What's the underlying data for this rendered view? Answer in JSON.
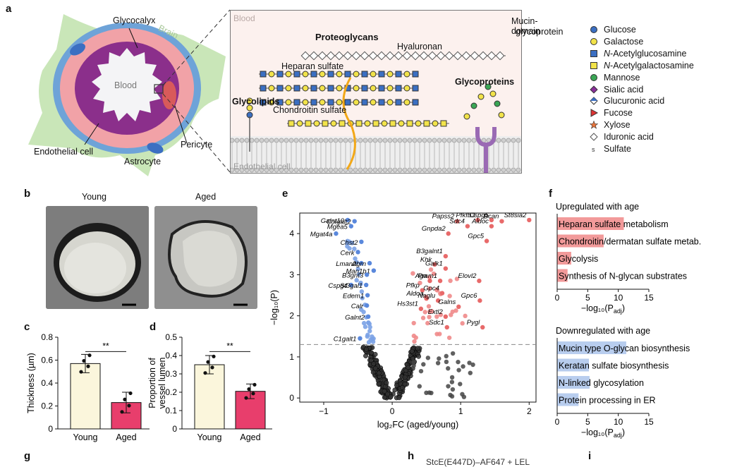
{
  "panels": {
    "a": "a",
    "b": "b",
    "c": "c",
    "d": "d",
    "e": "e",
    "f": "f",
    "g": "g",
    "h": "h",
    "i": "i"
  },
  "schematic": {
    "vessel_labels": {
      "glycocalyx": "Glycocalyx",
      "brain": "Brain",
      "blood": "Blood",
      "endothelial_cell": "Endothelial cell",
      "pericyte": "Pericyte",
      "astrocyte": "Astrocyte"
    },
    "inset_labels": {
      "blood": "Blood",
      "proteoglycans": "Proteoglycans",
      "hyaluronan": "Hyaluronan",
      "heparan_sulfate": "Heparan sulfate",
      "glycolipids": "Glycolipids",
      "chondroitin_sulfate": "Chondroitin sulfate",
      "glycoproteins": "Glycoproteins",
      "mucin_domain": "Mucin-domain",
      "mucin_glyco": "glycoprotein",
      "endothelial_cell": "Endothelial cell"
    },
    "legend": [
      {
        "label": "Glucose",
        "shape": "circle",
        "color": "#3b6fc2"
      },
      {
        "label": "Galactose",
        "shape": "circle",
        "color": "#f2e34a"
      },
      {
        "label": "N-Acetylglucosamine",
        "shape": "square",
        "color": "#3b6fc2"
      },
      {
        "label": "N-Acetylgalactosamine",
        "shape": "square",
        "color": "#f2e34a"
      },
      {
        "label": "Mannose",
        "shape": "circle",
        "color": "#3aa655"
      },
      {
        "label": "Sialic acid",
        "shape": "diamond",
        "color": "#8a2f9a"
      },
      {
        "label": "Glucuronic acid",
        "shape": "diamond-half",
        "color": "#3b6fc2"
      },
      {
        "label": "Fucose",
        "shape": "triangle",
        "color": "#d33"
      },
      {
        "label": "Xylose",
        "shape": "star",
        "color": "#e8743b"
      },
      {
        "label": "Iduronic acid",
        "shape": "diamond-outline",
        "color": "#999"
      },
      {
        "label": "Sulfate",
        "shape": "s",
        "color": "#333"
      }
    ]
  },
  "micrographs": {
    "young": "Young",
    "aged": "Aged"
  },
  "panel_c": {
    "ylabel": "Thickness (µm)",
    "ticks": [
      "0",
      "0.2",
      "0.4",
      "0.6",
      "0.8"
    ],
    "ylim": [
      0,
      0.8
    ],
    "categories": [
      "Young",
      "Aged"
    ],
    "values": [
      0.57,
      0.23
    ],
    "errors": [
      0.08,
      0.09
    ],
    "colors": [
      "#fbf6dc",
      "#e83e6c"
    ],
    "sig": "**"
  },
  "panel_d": {
    "ylabel1": "Proportion of",
    "ylabel2": "vessel lumen",
    "ticks": [
      "0",
      "0.1",
      "0.2",
      "0.3",
      "0.4",
      "0.5"
    ],
    "ylim": [
      0,
      0.5
    ],
    "categories": [
      "Young",
      "Aged"
    ],
    "values": [
      0.35,
      0.205
    ],
    "errors": [
      0.05,
      0.04
    ],
    "colors": [
      "#fbf6dc",
      "#e83e6c"
    ],
    "sig": "**"
  },
  "chart_data": {
    "type": "scatter",
    "xlabel": "log₂FC (aged/young)",
    "ylabel": "−log₁₀(P)",
    "xlim": [
      -1.35,
      2.1
    ],
    "ylim": [
      -0.1,
      4.5
    ],
    "xticks": [
      "−1",
      "0",
      "1",
      "2"
    ],
    "yticks": [
      "0",
      "1",
      "2",
      "3",
      "4"
    ],
    "threshold": 1.3,
    "down_genes": [
      {
        "name": "Galnt10",
        "x": -0.65,
        "y": 4.33
      },
      {
        "name": "Colgalt2",
        "x": -0.55,
        "y": 4.3
      },
      {
        "name": "Mgea5",
        "x": -0.6,
        "y": 4.18
      },
      {
        "name": "Mgat4a",
        "x": -0.82,
        "y": 4.0
      },
      {
        "name": "Chst2",
        "x": -0.45,
        "y": 3.8
      },
      {
        "name": "Cerk",
        "x": -0.5,
        "y": 3.55
      },
      {
        "name": "Lman2l",
        "x": -0.45,
        "y": 3.28
      },
      {
        "name": "Agrn",
        "x": -0.33,
        "y": 3.28
      },
      {
        "name": "Man1b1",
        "x": -0.27,
        "y": 3.1
      },
      {
        "name": "B3gnt3",
        "x": -0.37,
        "y": 3.0
      },
      {
        "name": "Cspg4",
        "x": -0.6,
        "y": 2.75
      },
      {
        "name": "St3gal1",
        "x": -0.38,
        "y": 2.75
      },
      {
        "name": "Edem1",
        "x": -0.36,
        "y": 2.5
      },
      {
        "name": "Calr",
        "x": -0.37,
        "y": 2.25
      },
      {
        "name": "Galnt2",
        "x": -0.35,
        "y": 1.98
      },
      {
        "name": "C1galt1",
        "x": -0.47,
        "y": 1.45
      }
    ],
    "up_genes": [
      {
        "name": "Papss2",
        "x": 0.95,
        "y": 4.3
      },
      {
        "name": "Pfkfb3",
        "x": 1.25,
        "y": 4.33
      },
      {
        "name": "Cspg5",
        "x": 1.45,
        "y": 4.33
      },
      {
        "name": "St8sia2",
        "x": 2.0,
        "y": 4.33
      },
      {
        "name": "Sdc4",
        "x": 1.1,
        "y": 4.18
      },
      {
        "name": "Aldoc",
        "x": 1.45,
        "y": 4.18
      },
      {
        "name": "Bcan",
        "x": 1.6,
        "y": 4.3
      },
      {
        "name": "Gnpda2",
        "x": 0.82,
        "y": 4.0
      },
      {
        "name": "Gpc5",
        "x": 1.38,
        "y": 3.82
      },
      {
        "name": "B3galnt1",
        "x": 0.78,
        "y": 3.45
      },
      {
        "name": "Khk",
        "x": 0.62,
        "y": 3.25
      },
      {
        "name": "Galk1",
        "x": 0.78,
        "y": 3.15
      },
      {
        "name": "Aga",
        "x": 0.55,
        "y": 2.85
      },
      {
        "name": "Pmm1",
        "x": 0.7,
        "y": 2.85
      },
      {
        "name": "Elovl2",
        "x": 1.27,
        "y": 2.85
      },
      {
        "name": "Pfkp",
        "x": 0.44,
        "y": 2.62
      },
      {
        "name": "Gpc4",
        "x": 0.73,
        "y": 2.55
      },
      {
        "name": "Aldoa",
        "x": 0.5,
        "y": 2.42
      },
      {
        "name": "Naglu",
        "x": 0.67,
        "y": 2.37
      },
      {
        "name": "Gpc6",
        "x": 1.28,
        "y": 2.37
      },
      {
        "name": "Hs3st1",
        "x": 0.42,
        "y": 2.17
      },
      {
        "name": "Galns",
        "x": 0.97,
        "y": 2.22
      },
      {
        "name": "Extl2",
        "x": 0.78,
        "y": 1.98
      },
      {
        "name": "Sdc1",
        "x": 0.8,
        "y": 1.72
      },
      {
        "name": "Pygl",
        "x": 1.32,
        "y": 1.72
      }
    ]
  },
  "panel_f": {
    "up_title": "Upregulated with age",
    "up": [
      {
        "a": "Heparan sulfate",
        "b": " metabolism",
        "value": 10.9
      },
      {
        "a": "Chondroitin",
        "b": "/dermatan sulfate metab.",
        "value": 7.6
      },
      {
        "a": "Glycolysis",
        "b": "",
        "value": 2.3
      },
      {
        "a": "Synthesis of N-glycan substrates",
        "b": "",
        "value": 1.7
      }
    ],
    "down_title": "Downregulated with age",
    "down": [
      {
        "a": "Mucin type O-glycan biosynthesis",
        "b": "",
        "value": 11.3
      },
      {
        "a": "Keratan",
        "b": " sulfate biosynthesis",
        "value": 5.2
      },
      {
        "a": "N-linked",
        "b": " glycosylation",
        "value": 5.3
      },
      {
        "a": "Protein processing in ER",
        "b": "",
        "value": 3.5
      }
    ],
    "xticks": [
      "0",
      "5",
      "10",
      "15"
    ],
    "xmax": 15,
    "xlabel": "−log₁₀(P",
    "xlabel_sub": "adj",
    "xlabel_end": ")"
  },
  "bottom": {
    "h_text": "StcE(E447D)–AF647 + LEL"
  }
}
